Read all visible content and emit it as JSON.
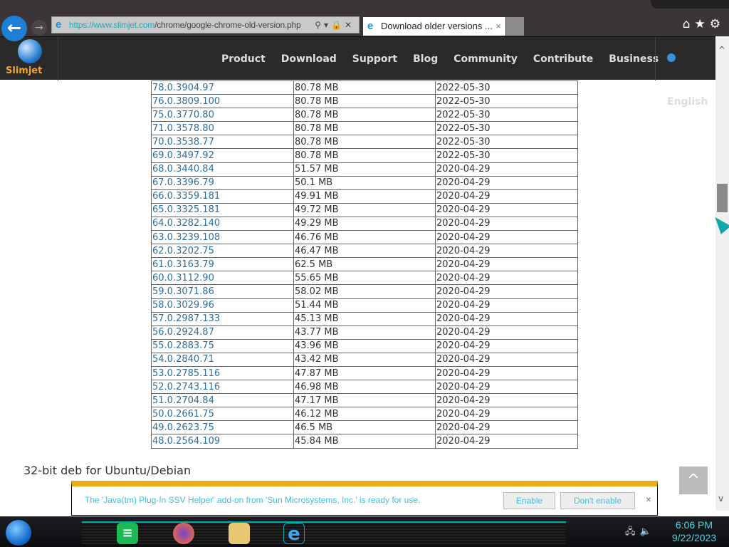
{
  "browser": {
    "url": "https://www.slimjet.com/chrome/google-chrome-old-version.php",
    "url_prefix": "https://www.",
    "url_domain": "slimjet.com",
    "url_path": "/chrome/google-chrome-old-version.php",
    "tab_title": "Download older versions ...",
    "tab_close": "×"
  },
  "nav": {
    "logo": "Slimjet",
    "items": [
      "Product",
      "Download",
      "Support",
      "Blog",
      "Community",
      "Contribute",
      "Business"
    ],
    "language": "English"
  },
  "table": {
    "rows": [
      [
        "78.0.3904.97",
        "80.78 MB",
        "2022-05-30"
      ],
      [
        "76.0.3809.100",
        "80.78 MB",
        "2022-05-30"
      ],
      [
        "75.0.3770.80",
        "80.78 MB",
        "2022-05-30"
      ],
      [
        "71.0.3578.80",
        "80.78 MB",
        "2022-05-30"
      ],
      [
        "70.0.3538.77",
        "80.78 MB",
        "2022-05-30"
      ],
      [
        "69.0.3497.92",
        "80.78 MB",
        "2022-05-30"
      ],
      [
        "68.0.3440.84",
        "51.57 MB",
        "2020-04-29"
      ],
      [
        "67.0.3396.79",
        "50.1 MB",
        "2020-04-29"
      ],
      [
        "66.0.3359.181",
        "49.91 MB",
        "2020-04-29"
      ],
      [
        "65.0.3325.181",
        "49.72 MB",
        "2020-04-29"
      ],
      [
        "64.0.3282.140",
        "49.29 MB",
        "2020-04-29"
      ],
      [
        "63.0.3239.108",
        "46.76 MB",
        "2020-04-29"
      ],
      [
        "62.0.3202.75",
        "46.47 MB",
        "2020-04-29"
      ],
      [
        "61.0.3163.79",
        "62.5 MB",
        "2020-04-29"
      ],
      [
        "60.0.3112.90",
        "55.65 MB",
        "2020-04-29"
      ],
      [
        "59.0.3071.86",
        "58.02 MB",
        "2020-04-29"
      ],
      [
        "58.0.3029.96",
        "51.44 MB",
        "2020-04-29"
      ],
      [
        "57.0.2987.133",
        "45.13 MB",
        "2020-04-29"
      ],
      [
        "56.0.2924.87",
        "43.77 MB",
        "2020-04-29"
      ],
      [
        "55.0.2883.75",
        "43.96 MB",
        "2020-04-29"
      ],
      [
        "54.0.2840.71",
        "43.42 MB",
        "2020-04-29"
      ],
      [
        "53.0.2785.116",
        "47.87 MB",
        "2020-04-29"
      ],
      [
        "52.0.2743.116",
        "46.98 MB",
        "2020-04-29"
      ],
      [
        "51.0.2704.84",
        "47.17 MB",
        "2020-04-29"
      ],
      [
        "50.0.2661.75",
        "46.12 MB",
        "2020-04-29"
      ],
      [
        "49.0.2623.75",
        "46.5 MB",
        "2020-04-29"
      ],
      [
        "48.0.2564.109",
        "45.84 MB",
        "2020-04-29"
      ]
    ]
  },
  "section_heading": "32-bit deb for Ubuntu/Debian",
  "notification": {
    "message": "The 'Java(tm) Plug-In SSV Helper' add-on from 'Sun Microsystems, Inc.' is ready for use.",
    "enable": "Enable",
    "dont_enable": "Don't enable",
    "close": "×"
  },
  "taskbar": {
    "time": "6:06 PM",
    "date": "9/22/2023"
  },
  "colors": {
    "link": "#2f6e9e",
    "accent": "#e8ad17",
    "notif_text": "#3cc2dc"
  }
}
